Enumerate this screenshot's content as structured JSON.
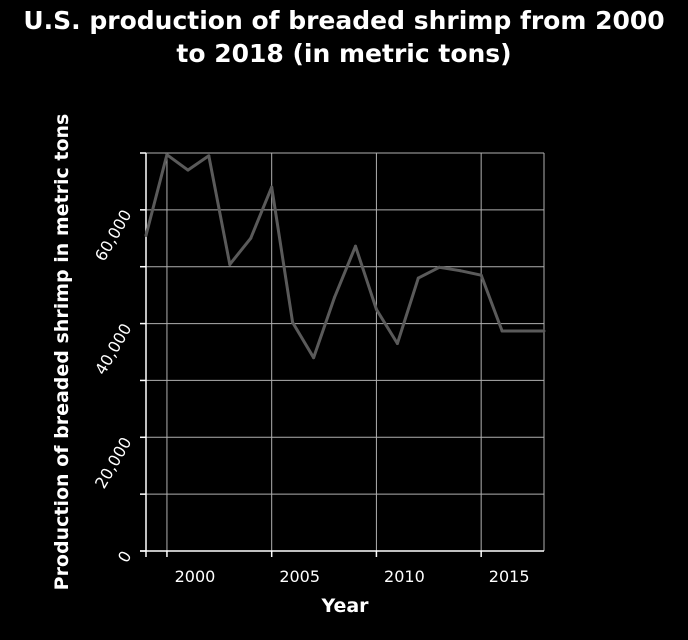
{
  "chart_data": {
    "type": "line",
    "title_lines": [
      "U.S. production of breaded shrimp from 2000",
      "to 2018 (in metric tons)"
    ],
    "xlabel": "Year",
    "ylabel": "Production of breaded shrimp in metric tons",
    "xlim": [
      1999,
      2018
    ],
    "ylim": [
      0,
      70000
    ],
    "x_ticks": [
      2000,
      2005,
      2010,
      2015
    ],
    "x_tick_labels": [
      "2000",
      "2005",
      "2010",
      "2015"
    ],
    "y_ticks": [
      0,
      20000,
      40000,
      60000
    ],
    "y_tick_labels": [
      "0",
      "20,000",
      "40,000",
      "60,000"
    ],
    "grid": true,
    "series": [
      {
        "x": [
          1999,
          2000,
          2001,
          2002,
          2003,
          2004,
          2005,
          2006,
          2007,
          2008,
          2009,
          2010,
          2011,
          2012,
          2013,
          2014,
          2015,
          2016,
          2017,
          2018
        ],
        "y": [
          55500,
          69700,
          67000,
          69500,
          50400,
          55000,
          64000,
          40200,
          34000,
          44600,
          53600,
          42500,
          36500,
          48000,
          49900,
          49300,
          48500,
          38700,
          38700,
          38700
        ]
      }
    ],
    "colors": {
      "background": "#000000",
      "grid": "#b0b0b0",
      "line": "#5a5a5a",
      "text": "#ffffff"
    }
  }
}
